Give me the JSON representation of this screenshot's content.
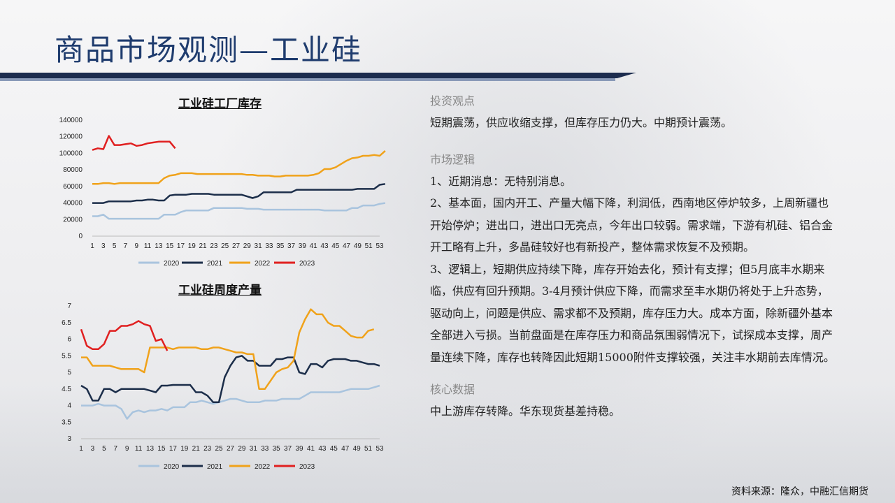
{
  "page_title": "商品市场观测—工业硅",
  "charts": {
    "inventory": {
      "title": "工业硅工厂库存"
    },
    "output": {
      "title": "工业硅周度产量"
    }
  },
  "chart_data": [
    {
      "type": "line",
      "title": "工业硅工厂库存",
      "x_ticks": [
        "1",
        "3",
        "5",
        "7",
        "9",
        "11",
        "13",
        "15",
        "17",
        "19",
        "21",
        "23",
        "25",
        "27",
        "29",
        "31",
        "33",
        "35",
        "37",
        "39",
        "41",
        "43",
        "45",
        "47",
        "49",
        "51",
        "53"
      ],
      "y_ticks": [
        "0",
        "20000",
        "40000",
        "60000",
        "80000",
        "100000",
        "120000",
        "140000"
      ],
      "ylim": [
        0,
        140000
      ],
      "xlim": [
        1,
        53
      ],
      "grid": false,
      "legend": "bottom",
      "series": [
        {
          "name": "2020",
          "color": "#a9c4de",
          "values": [
            24000,
            24000,
            26000,
            21000,
            21000,
            21000,
            21000,
            21000,
            21000,
            21000,
            21000,
            21000,
            21000,
            26000,
            26000,
            26000,
            29000,
            31000,
            31000,
            31000,
            31000,
            31000,
            34000,
            34000,
            34000,
            34000,
            34000,
            34000,
            33000,
            33000,
            33000,
            32000,
            32000,
            32000,
            32000,
            32000,
            32000,
            32000,
            32000,
            32000,
            32000,
            32000,
            31000,
            31000,
            31000,
            31000,
            31000,
            34000,
            34000,
            37000,
            37000,
            37000,
            39000,
            40000
          ]
        },
        {
          "name": "2021",
          "color": "#1c2e4a",
          "values": [
            40000,
            40000,
            40000,
            42000,
            42000,
            42000,
            42000,
            42000,
            43000,
            43000,
            44000,
            44000,
            43000,
            43000,
            49000,
            50000,
            50000,
            50000,
            51000,
            51000,
            51000,
            51000,
            50000,
            50000,
            50000,
            50000,
            50000,
            50000,
            48000,
            46000,
            48000,
            53000,
            53000,
            53000,
            53000,
            53000,
            53000,
            56000,
            56000,
            56000,
            56000,
            56000,
            56000,
            56000,
            56000,
            56000,
            56000,
            56000,
            57000,
            57000,
            57000,
            57000,
            62000,
            63000
          ]
        },
        {
          "name": "2022",
          "color": "#f0a21a",
          "values": [
            63000,
            63000,
            64000,
            64000,
            63000,
            64000,
            64000,
            64000,
            64000,
            64000,
            64000,
            64000,
            64000,
            70000,
            73000,
            74000,
            76000,
            76000,
            76000,
            75000,
            75000,
            75000,
            75000,
            75000,
            75000,
            75000,
            75000,
            75000,
            74000,
            74000,
            73000,
            73000,
            73000,
            72000,
            72000,
            73000,
            73000,
            73000,
            73000,
            73000,
            74000,
            76000,
            81000,
            81000,
            83000,
            87000,
            91000,
            94000,
            95000,
            97000,
            97000,
            98000,
            97000,
            103000
          ]
        },
        {
          "name": "2023",
          "color": "#e02020",
          "values": [
            104000,
            106000,
            105000,
            121000,
            110000,
            110000,
            111000,
            112000,
            109000,
            110000,
            112000,
            113000,
            114000,
            114000,
            114000,
            106000
          ]
        }
      ]
    },
    {
      "type": "line",
      "title": "工业硅周度产量",
      "x_ticks": [
        "1",
        "3",
        "5",
        "7",
        "9",
        "11",
        "13",
        "15",
        "17",
        "19",
        "21",
        "23",
        "25",
        "27",
        "29",
        "31",
        "33",
        "35",
        "37",
        "39",
        "41",
        "43",
        "45",
        "47",
        "49",
        "51",
        "53"
      ],
      "y_ticks": [
        "3",
        "3.5",
        "4",
        "4.5",
        "5",
        "5.5",
        "6",
        "6.5",
        "7"
      ],
      "ylim": [
        3,
        7
      ],
      "xlim": [
        1,
        53
      ],
      "grid": false,
      "legend": "bottom",
      "series": [
        {
          "name": "2020",
          "color": "#a9c4de",
          "values": [
            4.0,
            4.0,
            4.0,
            4.05,
            4.0,
            4.0,
            4.0,
            3.9,
            3.6,
            3.8,
            3.85,
            3.8,
            3.85,
            3.85,
            3.9,
            3.85,
            3.95,
            3.95,
            3.95,
            4.1,
            4.1,
            4.15,
            4.1,
            4.05,
            4.1,
            4.15,
            4.2,
            4.2,
            4.15,
            4.1,
            4.1,
            4.1,
            4.15,
            4.15,
            4.15,
            4.2,
            4.2,
            4.2,
            4.2,
            4.3,
            4.4,
            4.4,
            4.4,
            4.4,
            4.4,
            4.4,
            4.45,
            4.5,
            4.5,
            4.5,
            4.5,
            4.55,
            4.6
          ]
        },
        {
          "name": "2021",
          "color": "#1c2e4a",
          "values": [
            4.6,
            4.5,
            4.15,
            4.15,
            4.5,
            4.5,
            4.4,
            4.5,
            4.5,
            4.5,
            4.5,
            4.5,
            4.45,
            4.4,
            4.6,
            4.6,
            4.62,
            4.62,
            4.62,
            4.62,
            4.4,
            4.4,
            4.3,
            4.1,
            4.1,
            4.85,
            5.2,
            5.45,
            5.5,
            5.35,
            5.35,
            5.2,
            5.2,
            5.2,
            5.4,
            5.4,
            5.45,
            5.45,
            5.0,
            4.95,
            5.25,
            5.25,
            5.15,
            5.35,
            5.4,
            5.4,
            5.4,
            5.35,
            5.35,
            5.3,
            5.25,
            5.25,
            5.2
          ]
        },
        {
          "name": "2022",
          "color": "#f0a21a",
          "values": [
            5.45,
            5.45,
            5.2,
            5.2,
            5.2,
            5.2,
            5.15,
            5.1,
            5.1,
            5.1,
            5.1,
            5.0,
            5.75,
            5.75,
            5.75,
            5.75,
            5.7,
            5.75,
            5.75,
            5.75,
            5.75,
            5.7,
            5.7,
            5.75,
            5.75,
            5.7,
            5.65,
            5.6,
            5.6,
            5.55,
            5.55,
            4.5,
            4.5,
            4.75,
            5.0,
            5.1,
            5.15,
            5.35,
            6.2,
            6.6,
            6.9,
            6.75,
            6.75,
            6.5,
            6.4,
            6.4,
            6.25,
            6.1,
            6.05,
            6.05,
            6.25,
            6.3
          ]
        },
        {
          "name": "2023",
          "color": "#e02020",
          "values": [
            6.3,
            5.8,
            5.7,
            5.7,
            5.85,
            6.25,
            6.25,
            6.4,
            6.4,
            6.45,
            6.55,
            6.45,
            6.4,
            5.95,
            6.0,
            5.65
          ]
        }
      ]
    }
  ],
  "right": {
    "sections": [
      {
        "heading": "投资观点",
        "paragraphs": [
          "短期震荡，供应收缩支撑，但库存压力仍大。中期预计震荡。"
        ]
      },
      {
        "heading": "市场逻辑",
        "paragraphs": [
          "1、近期消息：无特别消息。",
          "2、基本面，国内开工、产量大幅下降，利润低，西南地区停炉较多，上周新疆也开始停炉；进出口，进出口无亮点，今年出口较弱。需求端，下游有机硅、铝合金开工略有上升，多晶硅较好也有新投产，整体需求恢复不及预期。",
          "3、逻辑上，短期供应持续下降，库存开始去化，预计有支撑；但5月底丰水期来临，供应有回升预期。3-4月预计供应下降，而需求至丰水期仍将处于上升态势，驱动向上，问题是供应、需求都不及预期，库存压力大。成本方面，除新疆外基本全部进入亏损。当前盘面是在库存压力和商品氛围弱情况下，试探成本支撑，周产量连续下降，库存也转降因此短期15000附件支撑较强，关注丰水期前去库情况。"
        ]
      },
      {
        "heading": "核心数据",
        "paragraphs": [
          "中上游库存转降。华东现货基差持稳。"
        ]
      }
    ]
  },
  "source": "资料来源：隆众，中融汇信期货"
}
